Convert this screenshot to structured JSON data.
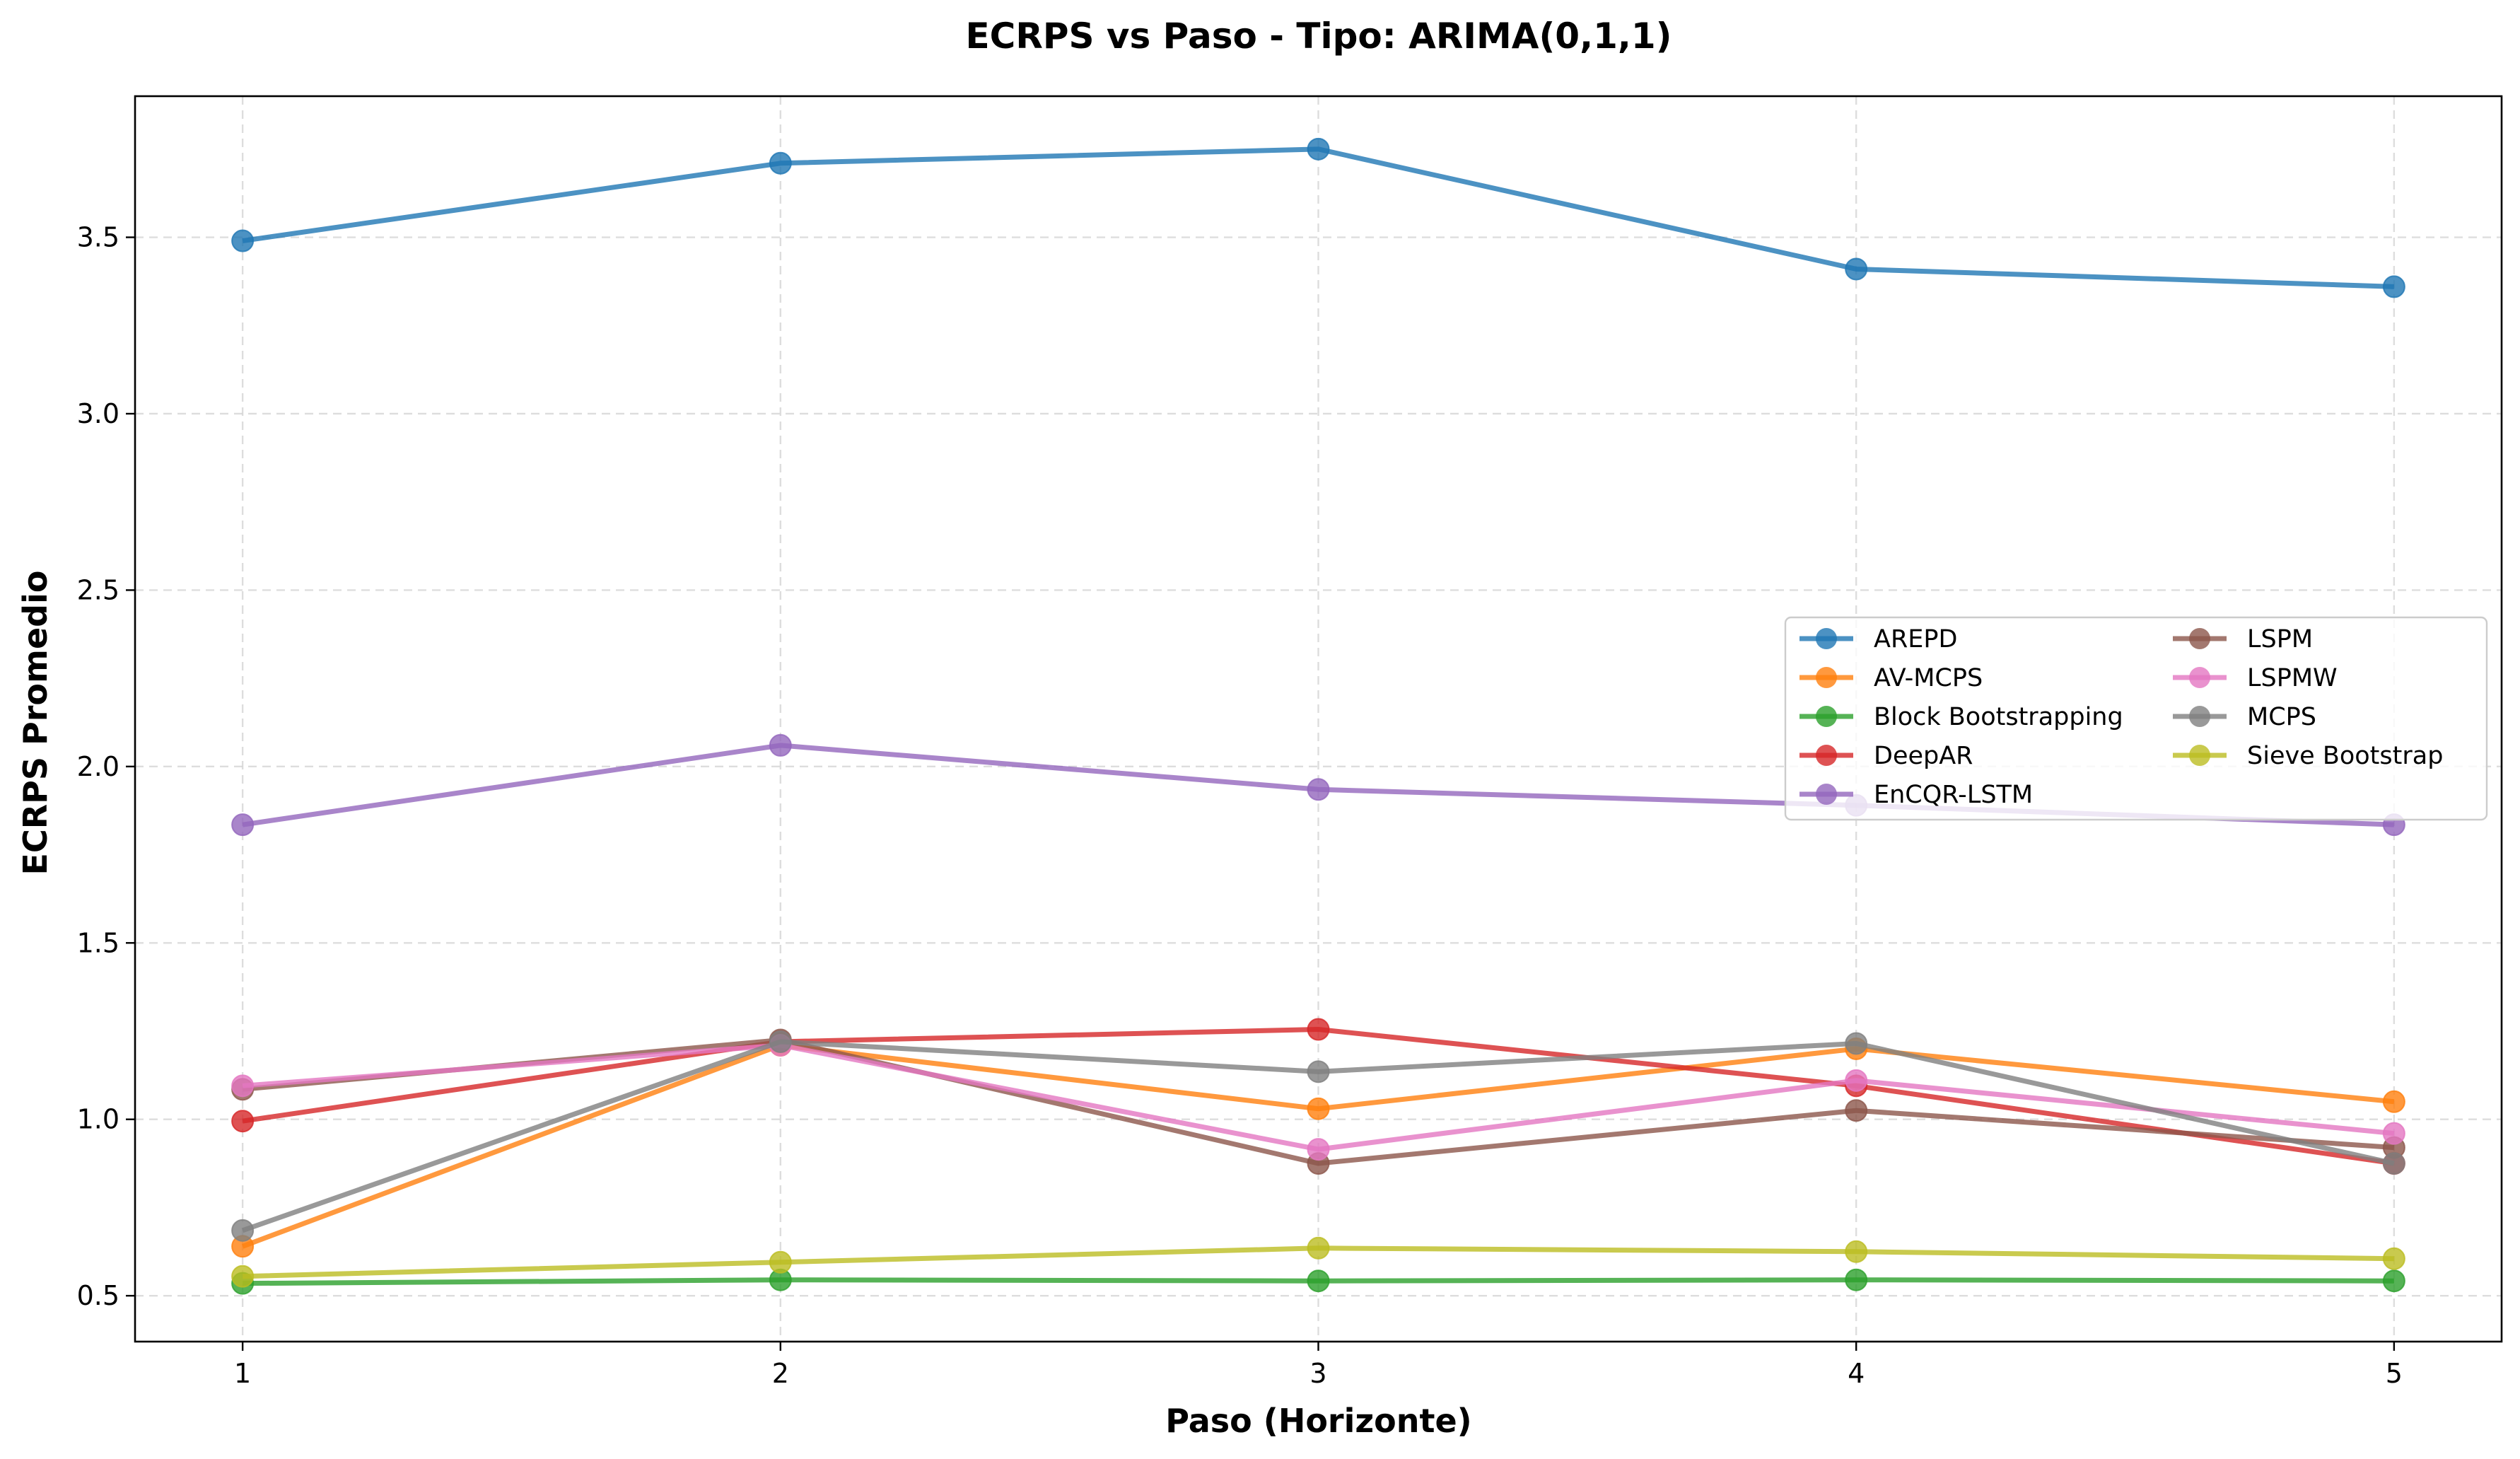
{
  "chart_data": {
    "type": "line",
    "title": "ECRPS vs Paso - Tipo: ARIMA(0,1,1)",
    "xlabel": "Paso (Horizonte)",
    "ylabel": "ECRPS Promedio",
    "x": [
      1,
      2,
      3,
      4,
      5
    ],
    "x_ticks": [
      "1",
      "2",
      "3",
      "4",
      "5"
    ],
    "xlim": [
      0.8,
      5.2
    ],
    "ylim": [
      0.37,
      3.9
    ],
    "y_ticks": [
      "0.5",
      "1.0",
      "1.5",
      "2.0",
      "2.5",
      "3.0",
      "3.5"
    ],
    "y_tick_values": [
      0.5,
      1.0,
      1.5,
      2.0,
      2.5,
      3.0,
      3.5
    ],
    "grid": true,
    "legend_position": "center-right",
    "legend_columns": 2,
    "series": [
      {
        "name": "AREPD",
        "color": "#1f77b4",
        "values": [
          3.49,
          3.71,
          3.75,
          3.41,
          3.36
        ]
      },
      {
        "name": "AV-MCPS",
        "color": "#ff7f0e",
        "values": [
          0.64,
          1.21,
          1.03,
          1.2,
          1.05
        ]
      },
      {
        "name": "Block Bootstrapping",
        "color": "#2ca02c",
        "values": [
          0.535,
          0.545,
          0.542,
          0.545,
          0.542
        ]
      },
      {
        "name": "DeepAR",
        "color": "#d62728",
        "values": [
          0.995,
          1.22,
          1.255,
          1.095,
          0.875
        ]
      },
      {
        "name": "EnCQR-LSTM",
        "color": "#9467bd",
        "values": [
          1.835,
          2.06,
          1.935,
          1.89,
          1.835
        ]
      },
      {
        "name": "LSPM",
        "color": "#8c564b",
        "values": [
          1.085,
          1.225,
          0.875,
          1.025,
          0.92
        ]
      },
      {
        "name": "LSPMW",
        "color": "#e377c2",
        "values": [
          1.095,
          1.21,
          0.915,
          1.11,
          0.96
        ]
      },
      {
        "name": "MCPS",
        "color": "#7f7f7f",
        "values": [
          0.685,
          1.22,
          1.135,
          1.215,
          0.875
        ]
      },
      {
        "name": "Sieve Bootstrap",
        "color": "#bcbd22",
        "values": [
          0.555,
          0.595,
          0.635,
          0.625,
          0.605
        ]
      }
    ]
  }
}
